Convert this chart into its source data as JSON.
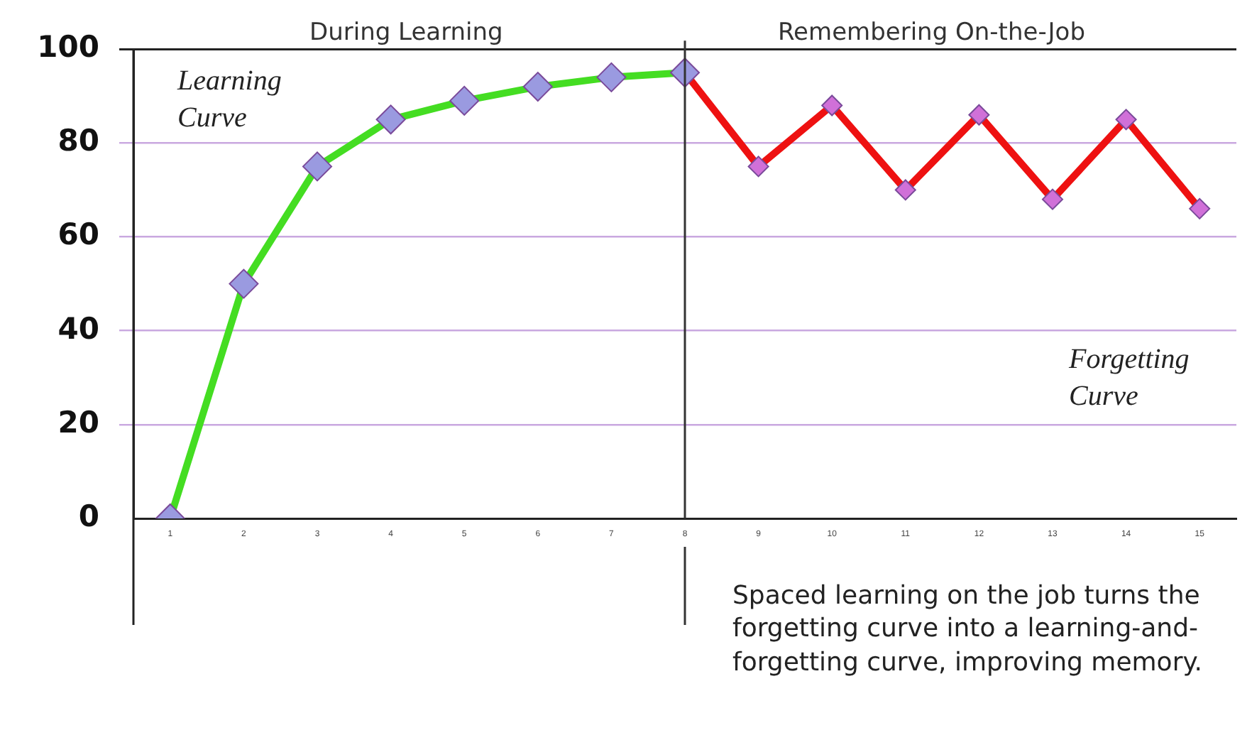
{
  "chart_data": {
    "type": "line",
    "series": [
      {
        "color": "#44dd22",
        "x": [
          1,
          2,
          3,
          4,
          5,
          6,
          7,
          8
        ],
        "values": [
          0,
          50,
          75,
          85,
          89,
          92,
          94,
          95
        ]
      },
      {
        "color": "#ee1111",
        "x": [
          8,
          9,
          10,
          11,
          12,
          13,
          14,
          15
        ],
        "values": [
          95,
          75,
          88,
          70,
          86,
          68,
          85,
          66
        ]
      }
    ],
    "xlim": [
      0.5,
      15.5
    ],
    "xticks": [
      1,
      2,
      3,
      4,
      5,
      6,
      7,
      8,
      9,
      10,
      11,
      12,
      13,
      14,
      15
    ],
    "ylim": [
      0,
      100
    ],
    "yticks": [
      0,
      20,
      40,
      60,
      80,
      100
    ],
    "grid": "y",
    "marker": "diamond",
    "line_style": "solid",
    "ref_lines": [
      {
        "axis": "x",
        "value": 8,
        "color": "#333333"
      }
    ],
    "annotations": [
      "During Learning",
      "Remembering On-the-Job",
      "Learning Curve",
      "Forgetting Curve",
      "Spaced learning on the job turns the forgetting curve into a learning-and-forgetting curve, improving memory."
    ]
  }
}
